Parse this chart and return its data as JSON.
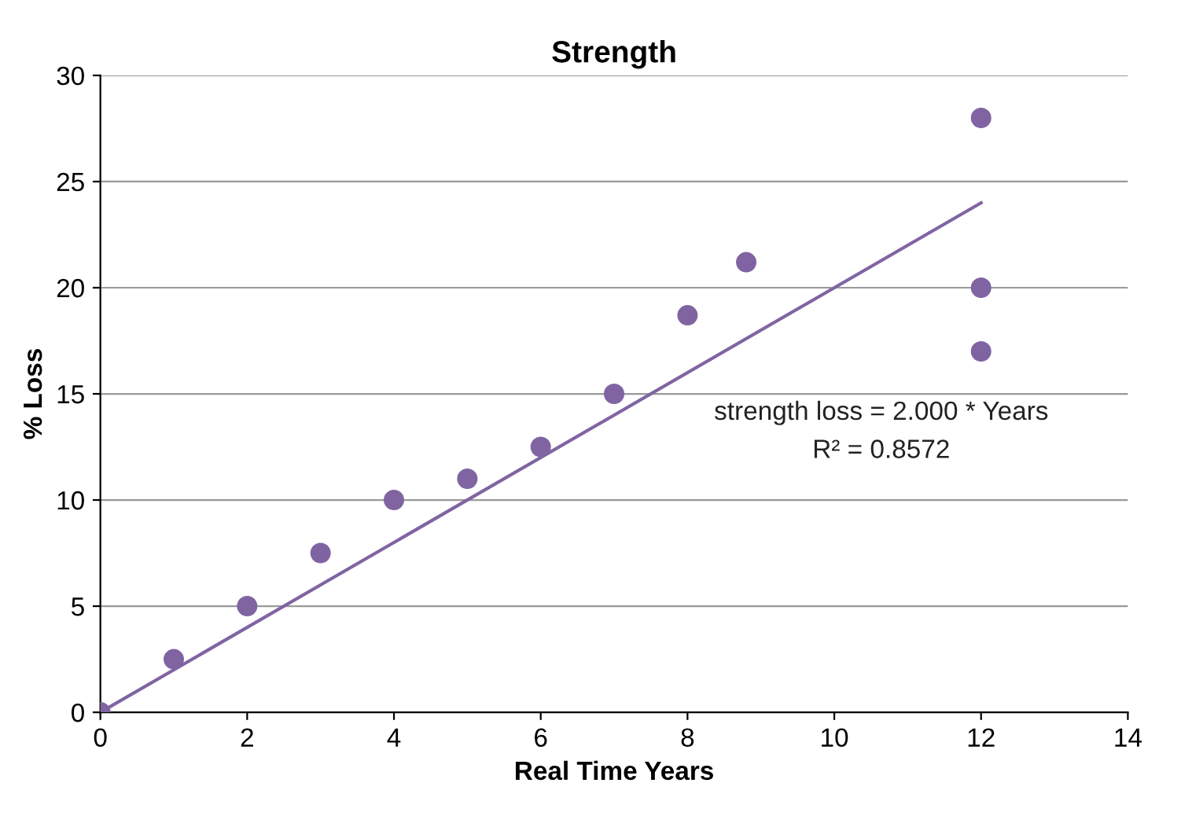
{
  "chart_data": {
    "type": "scatter",
    "title": "Strength",
    "xlabel": "Real Time Years",
    "ylabel": "% Loss",
    "xlim": [
      0,
      14
    ],
    "xticks": [
      0,
      2,
      4,
      6,
      8,
      10,
      12,
      14
    ],
    "ylim": [
      0,
      30
    ],
    "yticks": [
      0,
      5,
      10,
      15,
      20,
      25,
      30
    ],
    "grid": "y",
    "series": [
      {
        "marker": "circle",
        "color": "#8064a2",
        "x": [
          0,
          1,
          2,
          3,
          4,
          5,
          6,
          7,
          8,
          8.8,
          12,
          12,
          12
        ],
        "values": [
          0,
          2.5,
          5,
          7.5,
          10,
          11,
          12.5,
          15,
          18.7,
          21.2,
          28,
          20,
          17
        ]
      },
      {
        "type": "line",
        "marker": "none",
        "color": "#8064a2",
        "x": [
          0,
          12
        ],
        "values": [
          0,
          24
        ],
        "line_style": "solid"
      }
    ],
    "annotations": [
      "strength loss = 2.000 * Years",
      "R² = 0.8572"
    ]
  }
}
